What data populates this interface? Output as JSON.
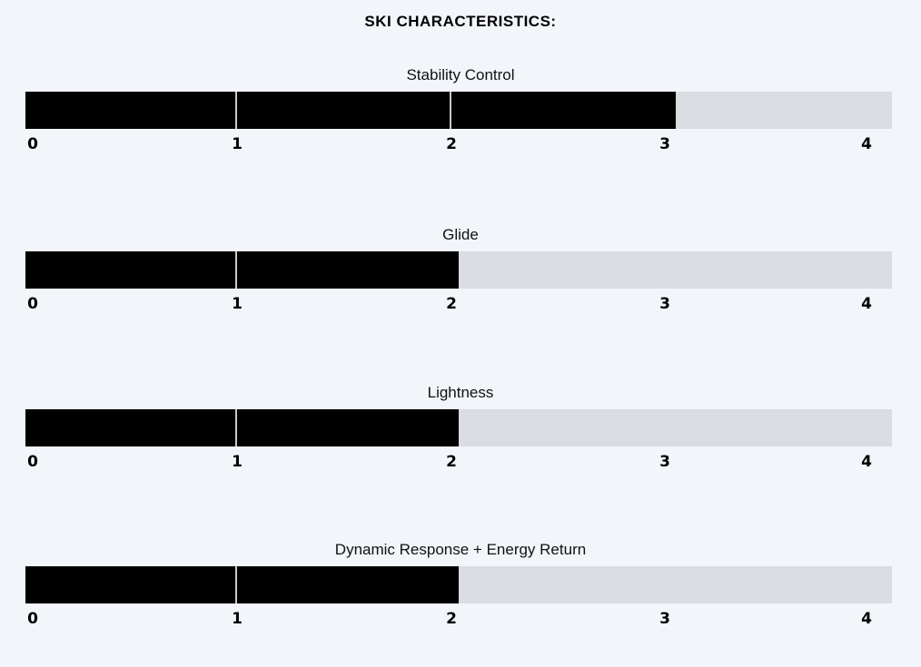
{
  "chart_data": {
    "type": "bar",
    "title": "SKI CHARACTERISTICS:",
    "xlim": [
      0,
      4
    ],
    "ticks": [
      "0",
      "1",
      "2",
      "3",
      "4"
    ],
    "categories": [
      "Stability Control",
      "Glide",
      "Lightness",
      "Dynamic Response + Energy Return"
    ],
    "values": [
      3,
      2,
      2,
      2
    ],
    "colors": {
      "fill": "#000000",
      "track": "#d9dce0",
      "background": "#f2f5fa"
    }
  }
}
